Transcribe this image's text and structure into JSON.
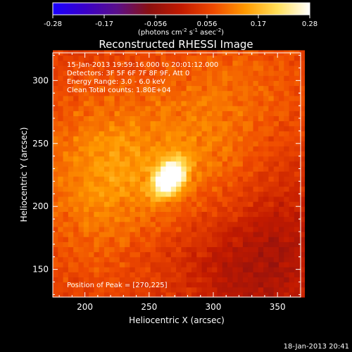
{
  "chart_data": {
    "type": "heatmap",
    "title": "Reconstructed RHESSI Image",
    "xlabel": "Heliocentric X (arcsec)",
    "ylabel": "Heliocentric Y (arcsec)",
    "xlim": [
      175,
      368
    ],
    "ylim": [
      128,
      322
    ],
    "xticks": [
      200,
      250,
      300,
      350
    ],
    "yticks": [
      150,
      200,
      250,
      300
    ],
    "colorbar": {
      "min": -0.28,
      "max": 0.28,
      "ticks": [
        "-0.28",
        "-0.17",
        "-0.056",
        "0.056",
        "0.17",
        "0.28"
      ],
      "label_main": "(photons cm",
      "label_exp1": "-2",
      "label_mid": " s",
      "label_exp2": "-1",
      "label_mid2": " asec",
      "label_exp3": "-2",
      "label_end": ")",
      "colors": [
        "#1a00ff",
        "#3a00c8",
        "#5a0f8a",
        "#8a1010",
        "#c21a00",
        "#ef4a00",
        "#ff9a00",
        "#ffe05a",
        "#ffffff"
      ]
    },
    "annotations": [
      "15-Jan-2013 19:59:16.000 to 20:01:12.000",
      "Detectors: 3F 5F 6F 7F 8F 9F, Att 0",
      "Energy Range: 3.0 - 6.0 keV",
      "Clean    Total counts: 1.80E+04"
    ],
    "peak_label": "Position of Peak = [270,225]",
    "peak": {
      "x": 270,
      "y": 225,
      "value": 0.28
    },
    "sources": [
      {
        "x": 266,
        "y": 223,
        "amp": 0.31,
        "sx": 7,
        "sy": 10,
        "angle": -35
      },
      {
        "x": 262,
        "y": 238,
        "amp": 0.075,
        "sx": 55,
        "sy": 38,
        "angle": 0
      },
      {
        "x": 205,
        "y": 210,
        "amp": 0.05,
        "sx": 30,
        "sy": 55,
        "angle": 0
      },
      {
        "x": 320,
        "y": 300,
        "amp": 0.04,
        "sx": 45,
        "sy": 30,
        "angle": 0
      },
      {
        "x": 330,
        "y": 150,
        "amp": -0.07,
        "sx": 35,
        "sy": 35,
        "angle": 0
      },
      {
        "x": 355,
        "y": 190,
        "amp": -0.03,
        "sx": 20,
        "sy": 40,
        "angle": 0
      }
    ],
    "baseline": 0.045,
    "date_stamp": "18-Jan-2013 20:41"
  }
}
